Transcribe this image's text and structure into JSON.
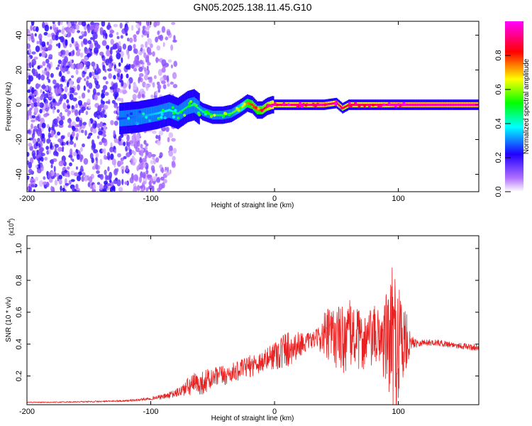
{
  "chart_data": [
    {
      "type": "heatmap",
      "title": "GN05.2025.138.11.45.G10",
      "xlabel": "Height of straight line (km)",
      "ylabel": "Frequency (Hz)",
      "xlim": [
        -200,
        165
      ],
      "ylim": [
        -50,
        48
      ],
      "x_ticks": [
        "-200",
        "-100",
        "0",
        "100"
      ],
      "y_ticks": [
        "-40",
        "-20",
        "0",
        "20",
        "40"
      ],
      "colorbar": {
        "label": "Normalized spectral amplitude",
        "ticks": [
          "0.0",
          "0.2",
          "0.4",
          "0.6",
          "0.8"
        ],
        "range": [
          0,
          1
        ],
        "colors": [
          "#ffffff",
          "#b070ff",
          "#2000ff",
          "#00ffff",
          "#00ff00",
          "#ffff00",
          "#ff0000",
          "#ff00ff"
        ]
      },
      "ridge": {
        "x": [
          -125,
          -110,
          -95,
          -85,
          -78,
          -70,
          -65,
          -58,
          -50,
          -42,
          -35,
          -28,
          -22,
          -18,
          -14,
          -10,
          -6,
          -2,
          2,
          10,
          25,
          40,
          50,
          55,
          60,
          70,
          80,
          90,
          95,
          100,
          165
        ],
        "y": [
          -8,
          -7,
          -5,
          -3,
          -5,
          -1,
          0,
          -4,
          -6,
          -6,
          -5,
          -2,
          1,
          0,
          -3,
          -3,
          -1,
          0,
          0,
          0,
          0,
          0,
          1,
          -2,
          0,
          0,
          0,
          0,
          0,
          0,
          0
        ],
        "value": [
          0.25,
          0.3,
          0.35,
          0.4,
          0.45,
          0.5,
          0.45,
          0.45,
          0.5,
          0.5,
          0.55,
          0.6,
          0.75,
          0.8,
          0.75,
          0.8,
          0.85,
          0.9,
          0.9,
          0.9,
          0.9,
          0.95,
          0.9,
          0.85,
          0.9,
          0.9,
          0.9,
          0.9,
          0.95,
          0.95,
          0.95
        ]
      }
    },
    {
      "type": "line",
      "xlabel": "Height of straight line (km)",
      "ylabel": "SNR (10 * v/v)",
      "y_multiplier": "(x10",
      "y_multiplier_exp": "4",
      "y_multiplier_close": ")",
      "xlim": [
        -200,
        165
      ],
      "ylim": [
        0.02,
        1.08
      ],
      "x_ticks": [
        "-200",
        "-100",
        "0",
        "100"
      ],
      "y_ticks": [
        "0.2",
        "0.4",
        "0.6",
        "0.8",
        "1.0"
      ],
      "color": "#e82222",
      "series": [
        {
          "x": [
            -200,
            -180,
            -160,
            -140,
            -120,
            -110,
            -100,
            -90,
            -80,
            -75,
            -70,
            -65,
            -60,
            -55,
            -50,
            -45,
            -40,
            -35,
            -30,
            -25,
            -20,
            -15,
            -10,
            -5,
            0,
            5,
            10,
            15,
            20,
            25,
            30,
            35,
            40,
            45,
            50,
            55,
            60,
            65,
            70,
            75,
            80,
            85,
            90,
            95,
            98,
            100,
            102,
            105,
            110,
            120,
            130,
            140,
            150,
            160,
            165
          ],
          "y": [
            0.035,
            0.035,
            0.038,
            0.04,
            0.045,
            0.05,
            0.06,
            0.07,
            0.09,
            0.11,
            0.13,
            0.15,
            0.15,
            0.17,
            0.18,
            0.2,
            0.2,
            0.22,
            0.23,
            0.25,
            0.26,
            0.28,
            0.29,
            0.31,
            0.34,
            0.35,
            0.37,
            0.38,
            0.4,
            0.41,
            0.42,
            0.44,
            0.45,
            0.44,
            0.45,
            0.43,
            0.46,
            0.45,
            0.41,
            0.43,
            0.44,
            0.45,
            0.42,
            0.43,
            0.4,
            0.45,
            0.42,
            0.41,
            0.41,
            0.41,
            0.41,
            0.4,
            0.39,
            0.38,
            0.38
          ],
          "noise": [
            0.003,
            0.003,
            0.004,
            0.005,
            0.006,
            0.008,
            0.01,
            0.015,
            0.025,
            0.04,
            0.06,
            0.07,
            0.07,
            0.08,
            0.06,
            0.07,
            0.06,
            0.06,
            0.06,
            0.06,
            0.07,
            0.07,
            0.07,
            0.07,
            0.1,
            0.12,
            0.12,
            0.1,
            0.08,
            0.06,
            0.05,
            0.06,
            0.15,
            0.2,
            0.2,
            0.22,
            0.22,
            0.2,
            0.18,
            0.18,
            0.2,
            0.18,
            0.3,
            0.45,
            0.5,
            0.5,
            0.4,
            0.25,
            0.04,
            0.02,
            0.02,
            0.02,
            0.02,
            0.02,
            0.02
          ]
        }
      ]
    }
  ]
}
